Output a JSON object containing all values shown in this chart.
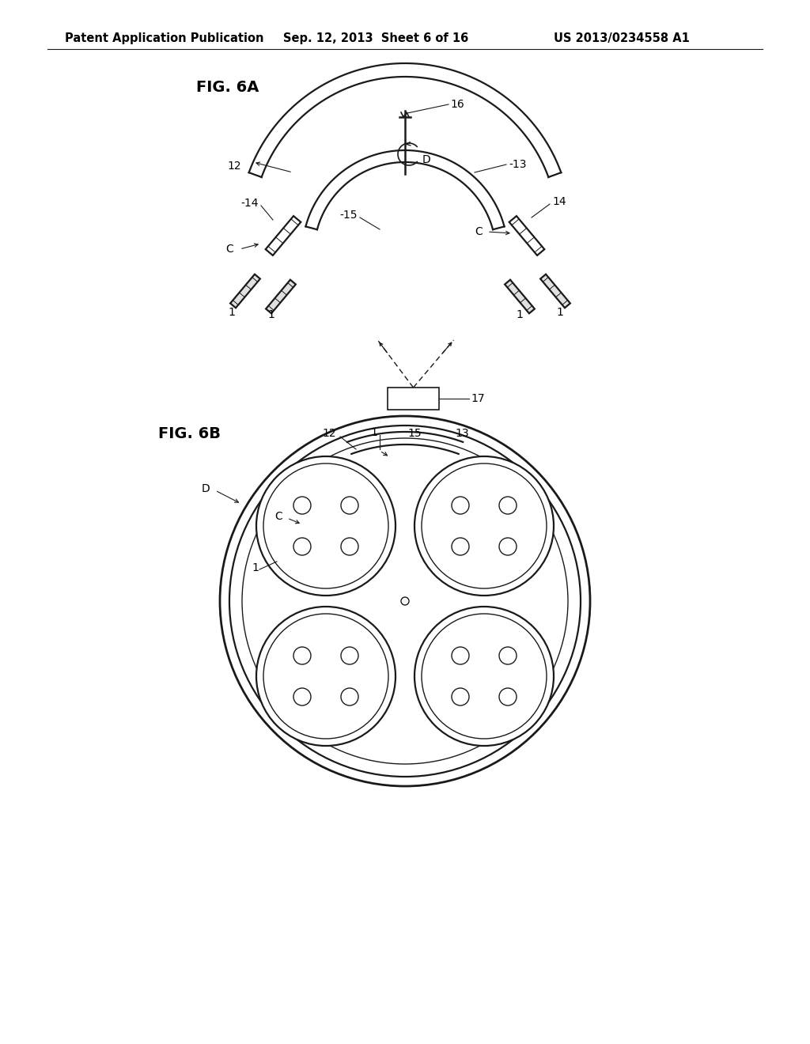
{
  "bg_color": "#ffffff",
  "line_color": "#1a1a1a",
  "header_left": "Patent Application Publication",
  "header_mid": "Sep. 12, 2013  Sheet 6 of 16",
  "header_right": "US 2013/0234558 A1",
  "fig6a_label": "FIG. 6A",
  "fig6b_label": "FIG. 6B"
}
